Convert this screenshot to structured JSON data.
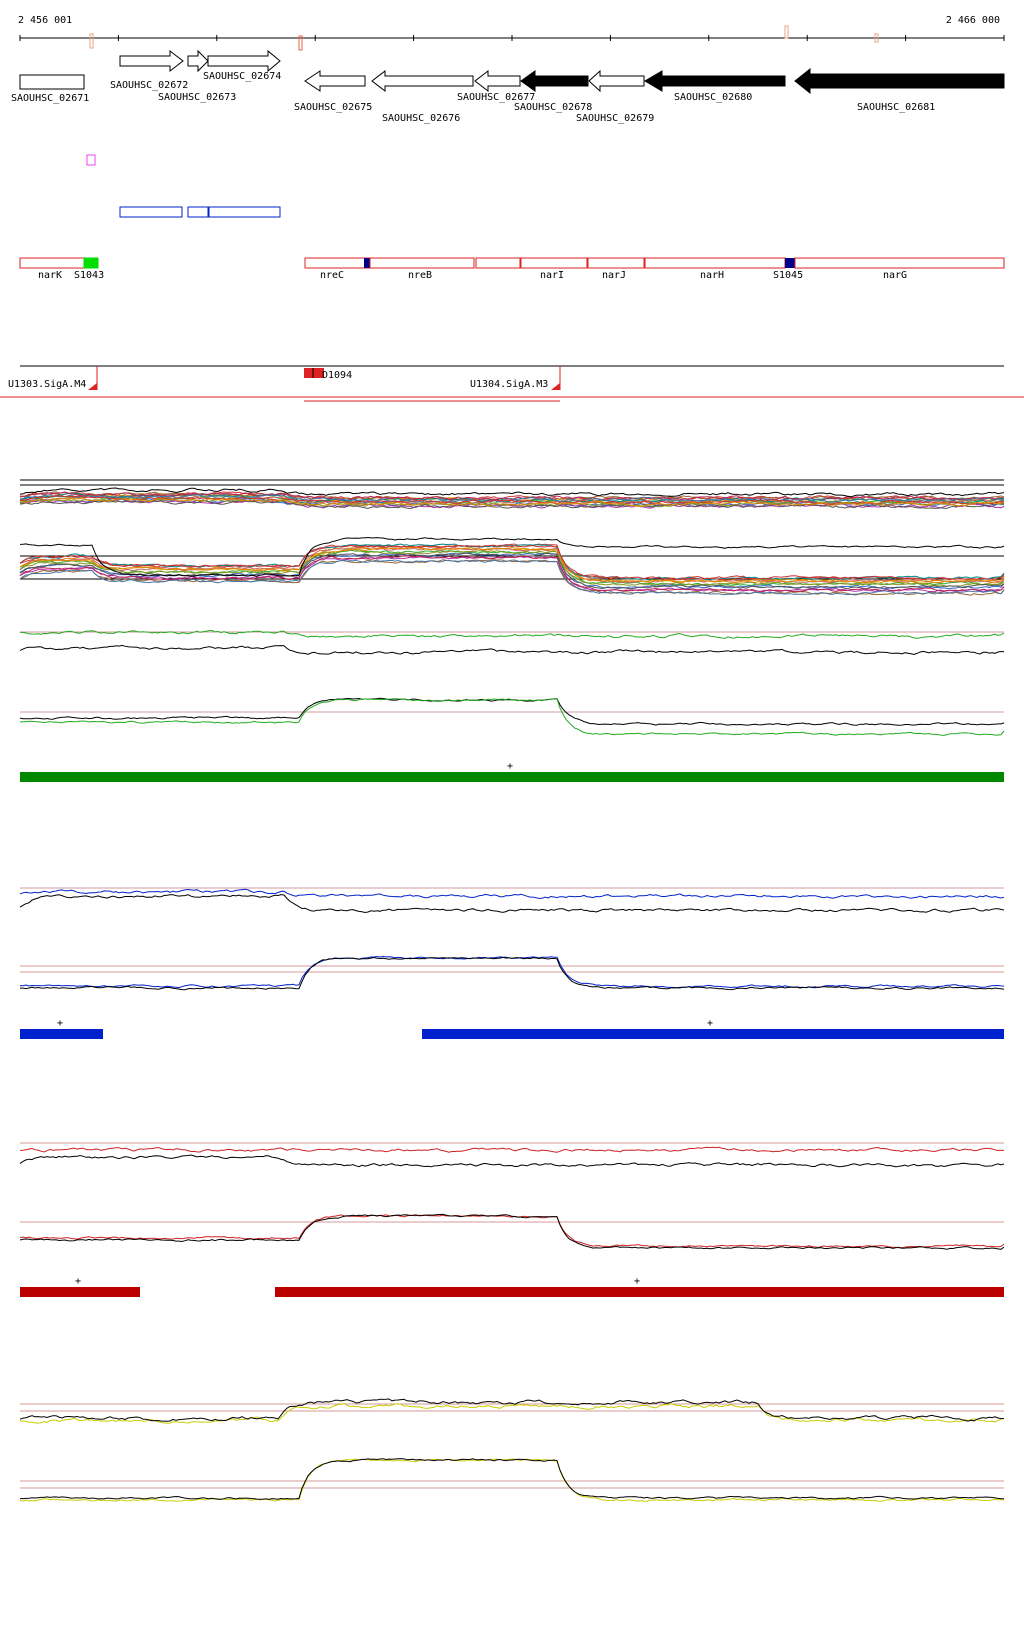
{
  "ruler": {
    "start_label": "2 456 001",
    "end_label": "2 466 000"
  },
  "genes": [
    {
      "label": "SAOUHSC_02671",
      "strand": "+",
      "filled": false
    },
    {
      "label": "SAOUHSC_02672",
      "strand": "+",
      "filled": false
    },
    {
      "label": "SAOUHSC_02673",
      "strand": "+",
      "filled": false
    },
    {
      "label": "SAOUHSC_02674",
      "strand": "+",
      "filled": false
    },
    {
      "label": "SAOUHSC_02675",
      "strand": "-",
      "filled": false
    },
    {
      "label": "SAOUHSC_02676",
      "strand": "-",
      "filled": false
    },
    {
      "label": "SAOUHSC_02677",
      "strand": "-",
      "filled": false
    },
    {
      "label": "SAOUHSC_02678",
      "strand": "-",
      "filled": true
    },
    {
      "label": "SAOUHSC_02679",
      "strand": "-",
      "filled": false
    },
    {
      "label": "SAOUHSC_02680",
      "strand": "-",
      "filled": true
    },
    {
      "label": "SAOUHSC_02681",
      "strand": "-",
      "filled": true
    }
  ],
  "annotations": [
    {
      "label": "narK"
    },
    {
      "label": "S1043"
    },
    {
      "label": "nreC"
    },
    {
      "label": "nreB"
    },
    {
      "label": "narI"
    },
    {
      "label": "narJ"
    },
    {
      "label": "narH"
    },
    {
      "label": "S1045"
    },
    {
      "label": "narG"
    }
  ],
  "promoters": [
    {
      "label": "U1303.SigA.M4"
    },
    {
      "label": "U1304.SigA.M3"
    },
    {
      "label": "D1094"
    }
  ],
  "strand_markers": [
    "+",
    "+",
    "+",
    "+",
    "+"
  ],
  "colors": {
    "gene_outline": "#000000",
    "annotation_outline": "#dd2222",
    "green_segment": "#008800",
    "blue_segment": "#0022cc",
    "red_segment": "#bb0000",
    "yellow_trace": "#cccc00",
    "bright_green_box": "#00dd00",
    "dark_blue_box": "#000088",
    "magenta_box": "#ee44ee",
    "pale_orange_mark": "#f0a080"
  }
}
